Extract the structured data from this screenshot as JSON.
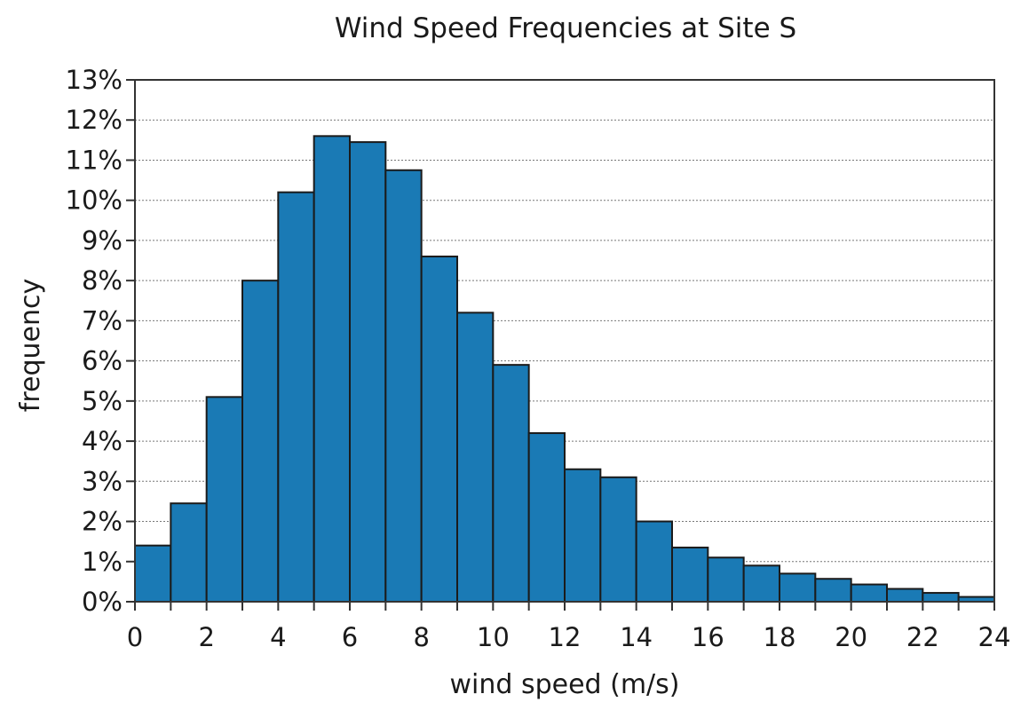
{
  "chart_data": {
    "type": "bar",
    "title": "Wind Speed Frequencies at Site S",
    "xlabel": "wind speed (m/s)",
    "ylabel": "frequency",
    "xlim": [
      0,
      24
    ],
    "ylim": [
      0,
      13
    ],
    "bar_color": "#1a7ab5",
    "grid": true,
    "x_ticks": [
      "0",
      "2",
      "4",
      "6",
      "8",
      "10",
      "12",
      "14",
      "16",
      "18",
      "20",
      "22",
      "24"
    ],
    "y_ticks": [
      "0%",
      "1%",
      "2%",
      "3%",
      "4%",
      "5%",
      "6%",
      "7%",
      "8%",
      "9%",
      "10%",
      "11%",
      "12%",
      "13%"
    ],
    "bins": [
      {
        "x0": 0,
        "x1": 1,
        "value": 1.4
      },
      {
        "x0": 1,
        "x1": 2,
        "value": 2.45
      },
      {
        "x0": 2,
        "x1": 3,
        "value": 5.1
      },
      {
        "x0": 3,
        "x1": 4,
        "value": 8.0
      },
      {
        "x0": 4,
        "x1": 5,
        "value": 10.2
      },
      {
        "x0": 5,
        "x1": 6,
        "value": 11.6
      },
      {
        "x0": 6,
        "x1": 7,
        "value": 11.45
      },
      {
        "x0": 7,
        "x1": 8,
        "value": 10.75
      },
      {
        "x0": 8,
        "x1": 9,
        "value": 8.6
      },
      {
        "x0": 9,
        "x1": 10,
        "value": 7.2
      },
      {
        "x0": 10,
        "x1": 11,
        "value": 5.9
      },
      {
        "x0": 11,
        "x1": 12,
        "value": 4.2
      },
      {
        "x0": 12,
        "x1": 13,
        "value": 3.3
      },
      {
        "x0": 13,
        "x1": 14,
        "value": 3.1
      },
      {
        "x0": 14,
        "x1": 15,
        "value": 2.0
      },
      {
        "x0": 15,
        "x1": 16,
        "value": 1.35
      },
      {
        "x0": 16,
        "x1": 17,
        "value": 1.1
      },
      {
        "x0": 17,
        "x1": 18,
        "value": 0.9
      },
      {
        "x0": 18,
        "x1": 19,
        "value": 0.7
      },
      {
        "x0": 19,
        "x1": 20,
        "value": 0.57
      },
      {
        "x0": 20,
        "x1": 21,
        "value": 0.43
      },
      {
        "x0": 21,
        "x1": 22,
        "value": 0.32
      },
      {
        "x0": 22,
        "x1": 23,
        "value": 0.22
      },
      {
        "x0": 23,
        "x1": 24,
        "value": 0.12
      }
    ]
  }
}
